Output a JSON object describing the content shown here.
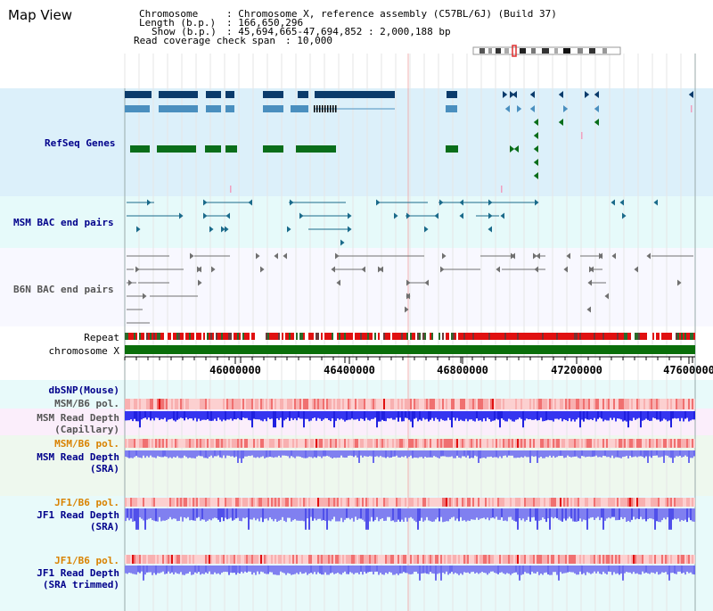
{
  "page_title": "Map View",
  "header": {
    "chromosome_label": "Chromosome",
    "chromosome_value": ": Chromosome X, reference assembly (C57BL/6J) (Build 37)",
    "length_label": "Length (b.p.)",
    "length_value": ": 166,650,296",
    "show_label": "Show (b.p.)",
    "show_value": ": 45,694,665-47,694,852 : 2,000,188 bp",
    "span_label": "Read coverage check span",
    "span_value": ": 10,000"
  },
  "tracks": {
    "refseq": "RefSeq Genes",
    "msm_bac": "MSM BAC end pairs",
    "b6n_bac": "B6N BAC end pairs",
    "repeat": "Repeat",
    "chromosome": "chromosome X",
    "dbsnp": "dbSNP(Mouse)",
    "msm_b6_pol_1": "MSM/B6 pol.",
    "msm_depth_cap_1": "MSM Read Depth",
    "msm_depth_cap_2": "(Capillary)",
    "msm_b6_pol_2": "MSM/B6 pol.",
    "msm_depth_sra_1": "MSM Read Depth",
    "msm_depth_sra_2": "(SRA)",
    "jf1_b6_pol_1": "JF1/B6 pol.",
    "jf1_depth_sra_1": "JF1 Read Depth",
    "jf1_depth_sra_2": "(SRA)",
    "jf1_b6_pol_2": "JF1/B6 pol.",
    "jf1_depth_trim_1": "JF1 Read Depth",
    "jf1_depth_trim_2": "(SRA trimmed)"
  },
  "ruler": {
    "ticks": [
      "46000000",
      "46400000",
      "46800000",
      "47200000",
      "47600000"
    ]
  },
  "colors": {
    "refseq_bg": "#dcf0fa",
    "bac_bg": "#e6fafa",
    "refseq_dark": "#0b3b6b",
    "refseq_mid": "#4a8fbf",
    "refseq_green": "#0a6e1a",
    "chromosome_bar": "#0a6e0a",
    "repeat_red": "#e01010",
    "depth_blue": "#2020e0",
    "depth_light_blue": "#8080f0",
    "label_blue": "#00008b",
    "label_orange": "#d98200"
  }
}
